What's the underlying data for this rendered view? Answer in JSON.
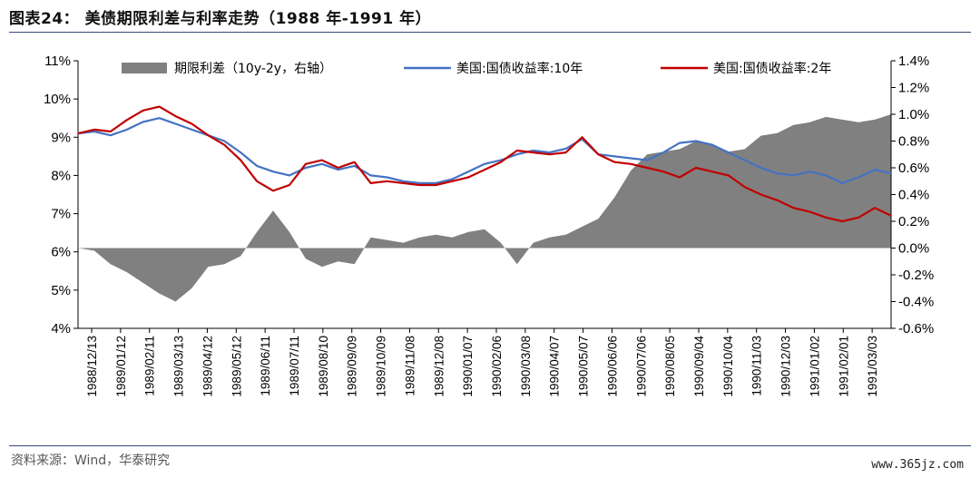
{
  "title": "图表24： 美债期限利差与利率走势（1988 年-1991 年）",
  "source": "资料来源：Wind，华泰研究",
  "watermark": "www.365jz.com",
  "chart_data": {
    "type": "line",
    "left_axis": {
      "min": 4,
      "max": 11,
      "ticks": [
        "4%",
        "5%",
        "6%",
        "7%",
        "8%",
        "9%",
        "10%",
        "11%"
      ]
    },
    "right_axis": {
      "min": -0.6,
      "max": 1.4,
      "ticks": [
        "-0.6%",
        "-0.4%",
        "-0.2%",
        "0.0%",
        "0.2%",
        "0.4%",
        "0.6%",
        "0.8%",
        "1.0%",
        "1.2%",
        "1.4%"
      ]
    },
    "x_tick_labels": [
      "1988/12/13",
      "1989/01/12",
      "1989/02/11",
      "1989/03/13",
      "1989/04/12",
      "1989/05/12",
      "1989/06/11",
      "1989/07/11",
      "1989/08/10",
      "1989/09/09",
      "1989/10/09",
      "1989/11/08",
      "1989/12/08",
      "1990/01/07",
      "1990/02/06",
      "1990/03/08",
      "1990/04/07",
      "1990/05/07",
      "1990/06/06",
      "1990/07/06",
      "1990/08/05",
      "1990/09/04",
      "1990/10/04",
      "1990/11/03",
      "1990/12/03",
      "1991/01/02",
      "1991/02/01",
      "1991/03/03"
    ],
    "series": [
      {
        "name": "期限利差（10y-2y，右轴）",
        "type": "area",
        "axis": "right",
        "color": "#808080",
        "values": [
          0.0,
          -0.02,
          -0.12,
          -0.18,
          -0.26,
          -0.34,
          -0.4,
          -0.3,
          -0.14,
          -0.12,
          -0.06,
          0.12,
          0.28,
          0.12,
          -0.08,
          -0.14,
          -0.1,
          -0.12,
          0.08,
          0.06,
          0.04,
          0.08,
          0.1,
          0.08,
          0.12,
          0.14,
          0.04,
          -0.12,
          0.04,
          0.08,
          0.1,
          0.16,
          0.22,
          0.38,
          0.58,
          0.7,
          0.72,
          0.74,
          0.8,
          0.78,
          0.72,
          0.74,
          0.84,
          0.86,
          0.92,
          0.94,
          0.98,
          0.96,
          0.94,
          0.96,
          1.0
        ]
      },
      {
        "name": "美国:国债收益率:10年",
        "type": "line",
        "axis": "left",
        "color": "#4472C4",
        "values": [
          9.1,
          9.15,
          9.05,
          9.2,
          9.4,
          9.5,
          9.35,
          9.2,
          9.05,
          8.9,
          8.6,
          8.25,
          8.1,
          8.0,
          8.2,
          8.3,
          8.15,
          8.25,
          8.0,
          7.95,
          7.85,
          7.8,
          7.8,
          7.9,
          8.1,
          8.3,
          8.4,
          8.55,
          8.65,
          8.6,
          8.7,
          8.95,
          8.55,
          8.5,
          8.45,
          8.4,
          8.6,
          8.85,
          8.9,
          8.8,
          8.6,
          8.4,
          8.2,
          8.05,
          8.0,
          8.1,
          8.0,
          7.8,
          7.95,
          8.15,
          8.05
        ]
      },
      {
        "name": "美国:国债收益率:2年",
        "type": "line",
        "axis": "left",
        "color": "#C00000",
        "values": [
          9.1,
          9.2,
          9.15,
          9.45,
          9.7,
          9.8,
          9.55,
          9.35,
          9.05,
          8.8,
          8.4,
          7.85,
          7.6,
          7.75,
          8.3,
          8.4,
          8.2,
          8.35,
          7.8,
          7.85,
          7.8,
          7.75,
          7.75,
          7.85,
          7.95,
          8.15,
          8.35,
          8.65,
          8.6,
          8.55,
          8.6,
          9.0,
          8.55,
          8.35,
          8.3,
          8.2,
          8.1,
          7.95,
          8.2,
          8.1,
          8.0,
          7.7,
          7.5,
          7.35,
          7.15,
          7.05,
          6.9,
          6.8,
          6.9,
          7.15,
          6.95
        ]
      }
    ]
  }
}
